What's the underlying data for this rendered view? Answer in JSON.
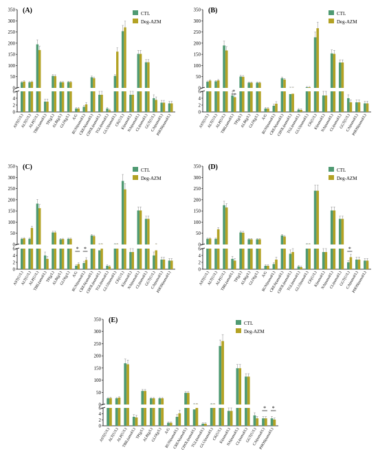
{
  "figure": {
    "legend_labels": [
      "CTL",
      "Deg-AZM"
    ],
    "colors": {
      "ctl": "#4f9a72",
      "deg_azm": "#b3a224",
      "error": "#999999"
    }
  },
  "chart_data": [
    {
      "type": "bar",
      "panel_label": "(A)",
      "categories": [
        "AST(U/L)",
        "ALT(U/L)",
        "ALP(U/L)",
        "TBIL(umol/L)",
        "TP(g/L)",
        "ALB(g/L)",
        "GLO(g/L)",
        "A/G",
        "BUN(mmol/L)",
        "CREA(umol/L)",
        "CHOL(mmol/L)",
        "TGL(mmol/L)",
        "GLU(mmol/L)",
        "CK(U/L)",
        "K(mmol/L)",
        "NA(mmol/L)",
        "CL(mmol/L)",
        "GGT(U/L)",
        "CA(mmol/L)",
        "PHOS(mmol/L)"
      ],
      "series": [
        {
          "name": "CTL",
          "values": [
            30,
            30,
            197,
            3,
            58,
            30,
            31,
            1,
            1.5,
            52,
            5,
            1,
            58,
            255,
            5,
            155,
            118,
            4,
            2.7,
            2.5
          ]
        },
        {
          "name": "Deg-AZM",
          "values": [
            33,
            32,
            172,
            3,
            57,
            30,
            31,
            1,
            2.2,
            48,
            5,
            0.5,
            165,
            272,
            5,
            155,
            118,
            3.5,
            2.7,
            2.5
          ]
        }
      ],
      "upper_ticks": [
        0,
        50,
        100,
        150,
        200,
        250,
        300,
        350
      ],
      "lower_ticks": [
        0,
        2,
        4,
        6
      ],
      "significance": []
    },
    {
      "type": "bar",
      "panel_label": "(B)",
      "categories": [
        "AST(U/L)",
        "ALT(U/L)",
        "ALP(U/L)",
        "TBIL(umol/L)",
        "TP(g/L)",
        "ALB(g/L)",
        "GLO(g/L)",
        "A/G",
        "BUN(mmol/L)",
        "CREA(umol/L)",
        "CHOL(mmol/L)",
        "TGL(mmol/L)",
        "GLU(mmol/L)",
        "CK(U/L)",
        "K(mmol/L)",
        "NA(mmol/L)",
        "CL(mmol/L)",
        "GGT(U/L)",
        "CA(mmol/L)",
        "PHOS(mmol/L)"
      ],
      "series": [
        {
          "name": "CTL",
          "values": [
            32,
            34,
            192,
            4.8,
            55,
            28,
            28,
            1,
            1.8,
            48,
            5.2,
            0.7,
            8,
            228,
            4.8,
            157,
            117,
            4,
            2.8,
            2.5
          ]
        },
        {
          "name": "Deg-AZM",
          "values": [
            37,
            38,
            170,
            4.3,
            54,
            28,
            28,
            1,
            2.4,
            42,
            5.3,
            0.6,
            8,
            268,
            4.8,
            155,
            117,
            2.8,
            2.8,
            2.5
          ]
        }
      ],
      "upper_ticks": [
        0,
        50,
        100,
        150,
        200,
        250,
        300,
        350
      ],
      "lower_ticks": [
        0,
        2,
        4,
        6
      ],
      "significance": [
        "*"
      ]
    },
    {
      "type": "bar",
      "panel_label": "(C)",
      "categories": [
        "AST(U/L)",
        "ALT(U/L)",
        "ALP(U/L)",
        "TBIL(umol/L)",
        "TP(g/L)",
        "ALB(g/L)",
        "GLO(g/L)",
        "A/G",
        "BUN(mmol/L)",
        "CREA(umol/L)",
        "CHOL(mmol/L)",
        "TGL(mmol/L)",
        "GLU(mmol/L)",
        "CK(U/L)",
        "K(mmol/L)",
        "NA(mmol/L)",
        "CL(mmol/L)",
        "GGT(U/L)",
        "CA(mmol/L)",
        "PHOS(mmol/L)"
      ],
      "series": [
        {
          "name": "CTL",
          "values": [
            30,
            30,
            185,
            4,
            58,
            28,
            30,
            1,
            1.8,
            45,
            5.5,
            1,
            6,
            285,
            5,
            155,
            118,
            4,
            2.8,
            2.5
          ]
        },
        {
          "name": "Deg-AZM",
          "values": [
            32,
            78,
            165,
            3,
            58,
            29,
            30,
            1.5,
            2.7,
            42,
            6,
            0.8,
            6,
            248,
            5,
            155,
            118,
            5.5,
            2.8,
            2.5
          ]
        }
      ],
      "upper_ticks": [
        0,
        50,
        100,
        150,
        200,
        250,
        300,
        350
      ],
      "lower_ticks": [
        0,
        2,
        4,
        6
      ],
      "significance": [
        "*",
        "*"
      ]
    },
    {
      "type": "bar",
      "panel_label": "(D)",
      "categories": [
        "AST(U/L)",
        "ALT(U/L)",
        "ALP(U/L)",
        "TBIL(umol/L)",
        "TP(g/L)",
        "ALB(g/L)",
        "GLO(g/L)",
        "A/G",
        "BUN(mmol/L)",
        "CREA(umol/L)",
        "CHOL(mmol/L)",
        "TGL(mmol/L)",
        "GLU(mmol/L)",
        "CK(U/L)",
        "K(mmol/L)",
        "NA(mmol/L)",
        "CL(mmol/L)",
        "GGT(U/L)",
        "CA(mmol/L)",
        "PHOS(mmol/L)"
      ],
      "series": [
        {
          "name": "CTL",
          "values": [
            30,
            30,
            178,
            3,
            58,
            28,
            28,
            1,
            1.5,
            45,
            4.5,
            0.8,
            6,
            242,
            5,
            155,
            118,
            2,
            2.8,
            2.5
          ]
        },
        {
          "name": "Deg-AZM",
          "values": [
            31,
            72,
            168,
            2.5,
            57,
            28,
            28,
            1,
            2.8,
            40,
            5,
            0.6,
            6,
            242,
            5,
            155,
            118,
            3.5,
            2.8,
            2.5
          ]
        }
      ],
      "upper_ticks": [
        0,
        50,
        100,
        150,
        200,
        250,
        300,
        350
      ],
      "lower_ticks": [
        0,
        2,
        4,
        6
      ],
      "significance": [
        "*"
      ]
    },
    {
      "type": "bar",
      "panel_label": "(E)",
      "categories": [
        "AST(U/L)",
        "ALT(U/L)",
        "ALP(U/L)",
        "TBIL(umol/L)",
        "TP(g/L)",
        "ALB(g/L)",
        "GLO(g/L)",
        "A/G",
        "BUN(mmol/L)",
        "CREA(umol/L)",
        "CHOL(mmol/L)",
        "TGL(mmol/L)",
        "GLU(mmol/L)",
        "CK(U/L)",
        "K(mmol/L)",
        "NA(mmol/L)",
        "CL(mmol/L)",
        "GGT(U/L)",
        "CA(mmol/L)",
        "PHOS(mmol/L)"
      ],
      "series": [
        {
          "name": "CTL",
          "values": [
            30,
            30,
            172,
            3,
            60,
            30,
            30,
            1,
            3,
            52,
            5.5,
            0.7,
            6,
            242,
            5,
            152,
            118,
            3.5,
            2.5,
            2.5
          ]
        },
        {
          "name": "Deg-AZM",
          "values": [
            31,
            33,
            168,
            2.8,
            60,
            30,
            30,
            1,
            4.2,
            52,
            6,
            0.7,
            6,
            262,
            5,
            152,
            118,
            2.5,
            2.5,
            2.1
          ]
        }
      ],
      "upper_ticks": [
        0,
        50,
        100,
        150,
        200,
        250,
        300,
        350
      ],
      "lower_ticks": [
        0,
        2,
        4,
        6
      ],
      "significance": [
        "*",
        "*"
      ]
    }
  ]
}
